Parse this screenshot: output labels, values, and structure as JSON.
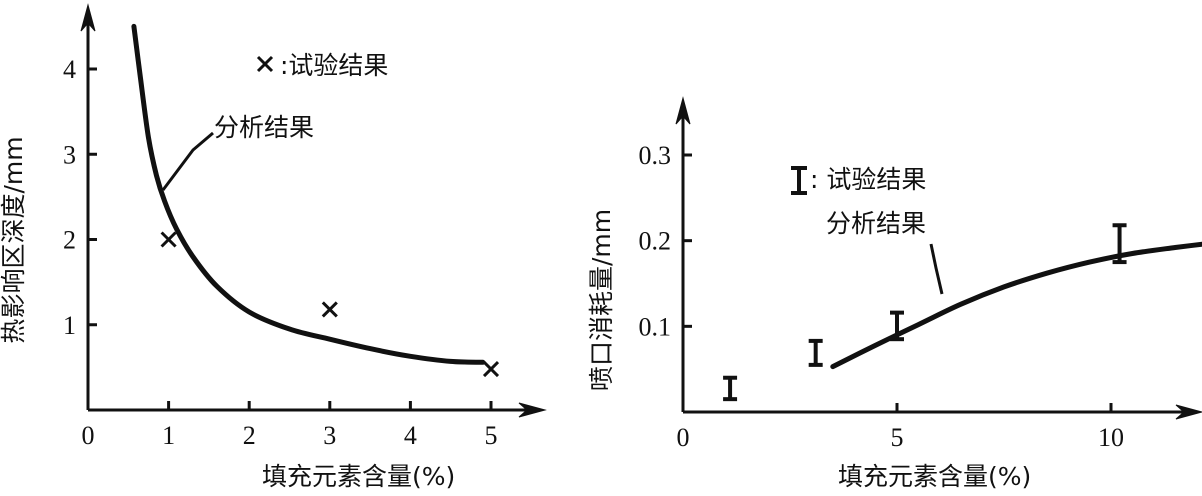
{
  "chart_data": [
    {
      "type": "line",
      "title": "",
      "xlabel": "填充元素含量(%)",
      "ylabel": "热影响区深度/mm",
      "xlim": [
        0,
        5.6
      ],
      "ylim": [
        0,
        4.7
      ],
      "x_ticks": [
        "0",
        "1",
        "2",
        "3",
        "4",
        "5"
      ],
      "y_ticks": [
        "1",
        "2",
        "3",
        "4"
      ],
      "grid": false,
      "legend": {
        "marker_symbol": "×",
        "marker_label": ":试验结果",
        "curve_label": "分析结果"
      },
      "series": [
        {
          "name": "试验结果",
          "kind": "points",
          "marker": "cross",
          "x": [
            1.0,
            3.0,
            5.0
          ],
          "y": [
            2.0,
            1.18,
            0.48
          ]
        },
        {
          "name": "分析结果",
          "kind": "curve",
          "x": [
            0.57,
            0.65,
            0.75,
            0.85,
            0.95,
            1.1,
            1.3,
            1.6,
            2.0,
            2.5,
            3.0,
            3.5,
            4.0,
            4.5,
            4.9
          ],
          "y": [
            4.5,
            3.9,
            3.2,
            2.75,
            2.45,
            2.12,
            1.8,
            1.45,
            1.15,
            0.95,
            0.83,
            0.72,
            0.63,
            0.57,
            0.56
          ]
        }
      ]
    },
    {
      "type": "line",
      "title": "",
      "xlabel": "填充元素含量(%)",
      "ylabel": "喷口消耗量/mm",
      "xlim": [
        0,
        12.5
      ],
      "ylim": [
        0,
        0.34
      ],
      "x_ticks": [
        "0",
        "5",
        "10"
      ],
      "y_ticks": [
        "0.1",
        "0.2",
        "0.3"
      ],
      "grid": false,
      "legend": {
        "marker_label": ": 试验结果",
        "curve_label": "分析结果"
      },
      "series": [
        {
          "name": "试验结果",
          "kind": "errorbar",
          "x": [
            1.1,
            3.1,
            5.0,
            10.2
          ],
          "y_low": [
            0.015,
            0.055,
            0.085,
            0.175
          ],
          "y_high": [
            0.04,
            0.083,
            0.116,
            0.218
          ]
        },
        {
          "name": "分析结果",
          "kind": "curve",
          "x": [
            3.5,
            4.5,
            5.5,
            6.5,
            7.5,
            8.5,
            9.5,
            10.5,
            11.5,
            12.5
          ],
          "y": [
            0.053,
            0.078,
            0.102,
            0.126,
            0.146,
            0.162,
            0.175,
            0.185,
            0.192,
            0.198
          ]
        }
      ]
    }
  ]
}
